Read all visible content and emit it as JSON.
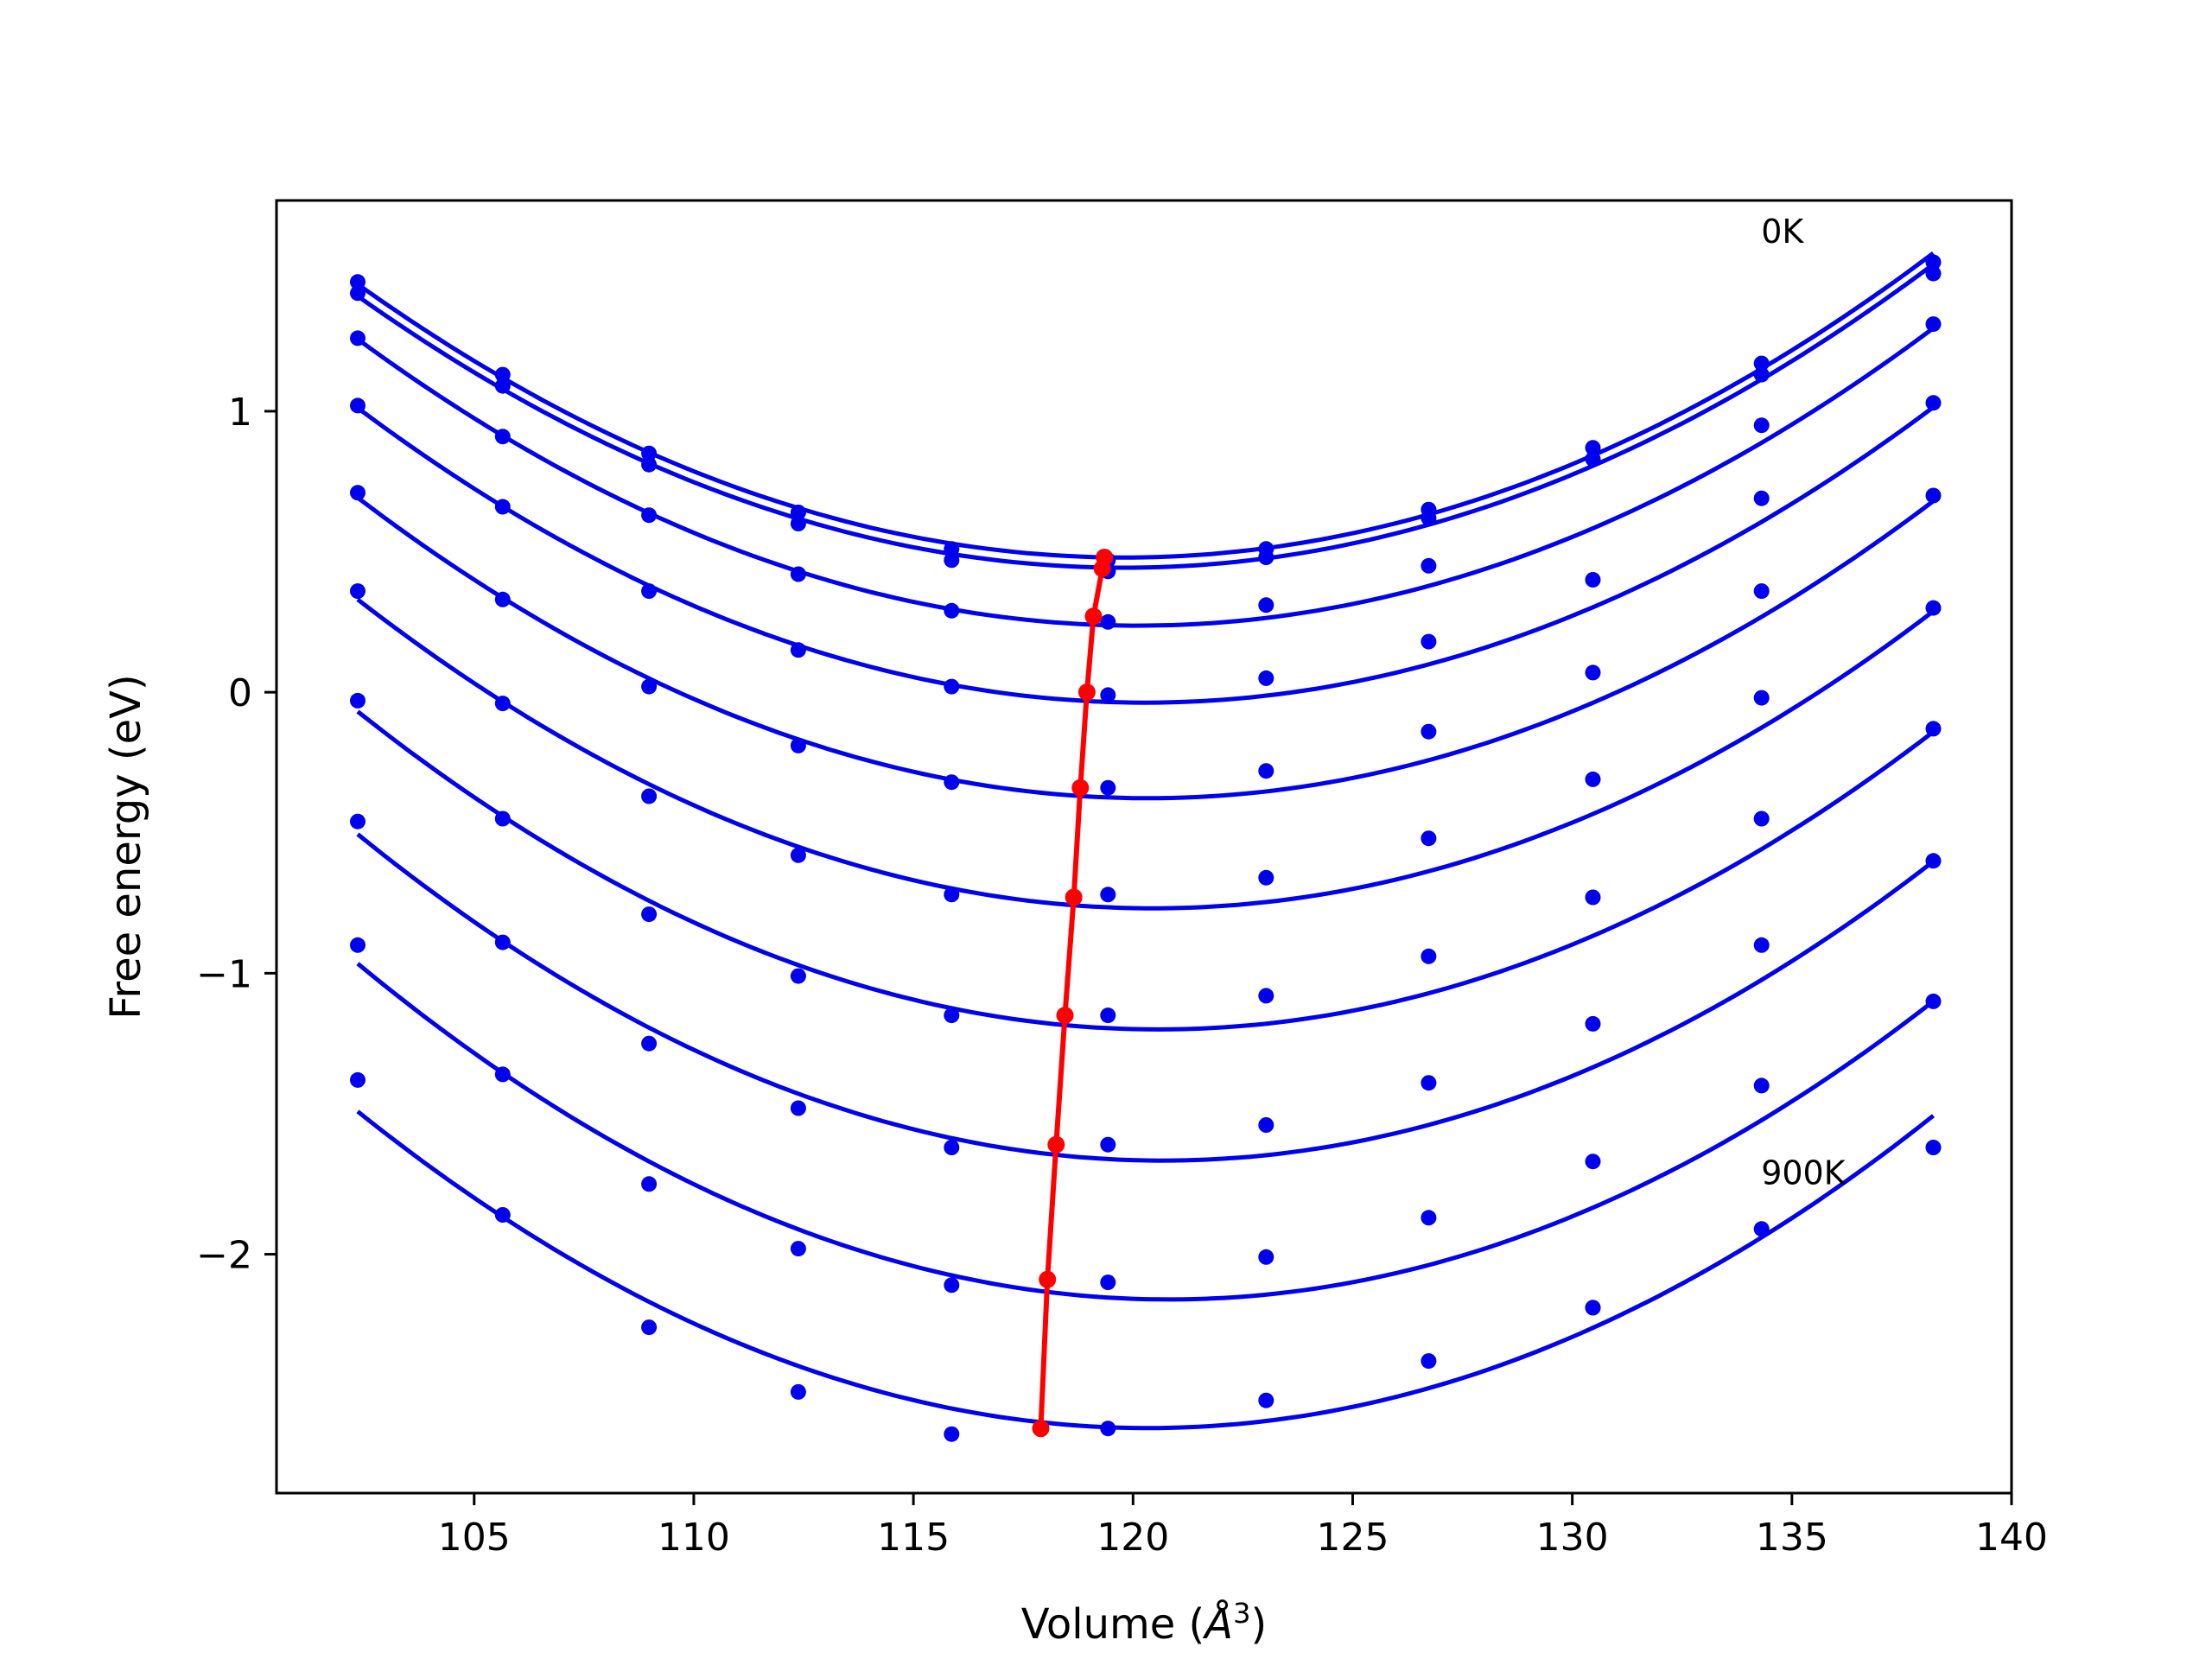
{
  "chart_data": {
    "type": "line",
    "xlabel": "Volume (",
    "xlabel_sym": "Å",
    "xlabel_sup": "3",
    "xlabel_end": ")",
    "ylabel": "Free energy (eV)",
    "xlim": [
      100.5,
      140
    ],
    "ylim": [
      -2.85,
      1.75
    ],
    "xticks": [
      105,
      110,
      115,
      120,
      125,
      130,
      135,
      140
    ],
    "yticks": [
      -2,
      -1,
      0,
      1
    ],
    "ytick_labels": [
      "−2",
      "−1",
      "0",
      "1"
    ],
    "grid": false,
    "legend": "none",
    "colors": {
      "series": "#0000ee",
      "minima": "#ff0000"
    },
    "annotations": [
      {
        "text": "0K",
        "x": 134.3,
        "y": 1.6
      },
      {
        "text": "900K",
        "x": 134.3,
        "y": -1.75
      }
    ],
    "x": [
      102.35,
      105.65,
      108.98,
      112.38,
      115.87,
      119.43,
      123.03,
      126.73,
      130.47,
      134.31,
      138.22
    ],
    "series": [
      {
        "values": [
          1.46,
          1.13,
          0.85,
          0.64,
          0.51,
          0.47,
          0.51,
          0.65,
          0.87,
          1.17,
          1.53
        ]
      },
      {
        "values": [
          1.42,
          1.09,
          0.81,
          0.6,
          0.47,
          0.43,
          0.48,
          0.62,
          0.83,
          1.13,
          1.49
        ]
      },
      {
        "values": [
          1.26,
          0.91,
          0.63,
          0.42,
          0.29,
          0.25,
          0.31,
          0.45,
          0.4,
          0.95,
          1.31
        ]
      },
      {
        "values": [
          1.02,
          0.66,
          0.36,
          0.15,
          0.02,
          -0.01,
          0.05,
          0.18,
          0.07,
          0.69,
          1.03
        ]
      },
      {
        "values": [
          0.71,
          0.33,
          0.02,
          -0.19,
          -0.32,
          -0.34,
          -0.28,
          -0.14,
          -0.31,
          0.36,
          0.7
        ]
      },
      {
        "values": [
          0.36,
          -0.04,
          -0.37,
          -0.58,
          -0.72,
          -0.72,
          -0.66,
          -0.52,
          -0.73,
          -0.02,
          0.3
        ]
      },
      {
        "values": [
          -0.03,
          -0.45,
          -0.79,
          -1.01,
          -1.15,
          -1.15,
          -1.08,
          -0.94,
          -1.18,
          -0.45,
          -0.13
        ]
      },
      {
        "values": [
          -0.46,
          -0.89,
          -1.25,
          -1.48,
          -1.62,
          -1.61,
          -1.54,
          -1.39,
          -1.67,
          -0.9,
          -0.6
        ]
      },
      {
        "values": [
          -0.9,
          -1.36,
          -1.75,
          -1.98,
          -2.11,
          -2.1,
          -2.01,
          -1.87,
          -2.19,
          -1.4,
          -1.1
        ]
      },
      {
        "values": [
          -1.38,
          -1.86,
          -2.26,
          -2.49,
          -2.64,
          -2.62,
          -2.52,
          -2.38,
          -2.19,
          -1.91,
          -1.62
        ]
      }
    ],
    "minima": {
      "x": [
        119.35,
        119.3,
        119.1,
        118.95,
        118.8,
        118.65,
        118.45,
        118.25,
        118.05,
        117.9
      ],
      "y": [
        0.48,
        0.44,
        0.27,
        0.0,
        -0.34,
        -0.73,
        -1.15,
        -1.61,
        -2.09,
        -2.62
      ]
    }
  }
}
